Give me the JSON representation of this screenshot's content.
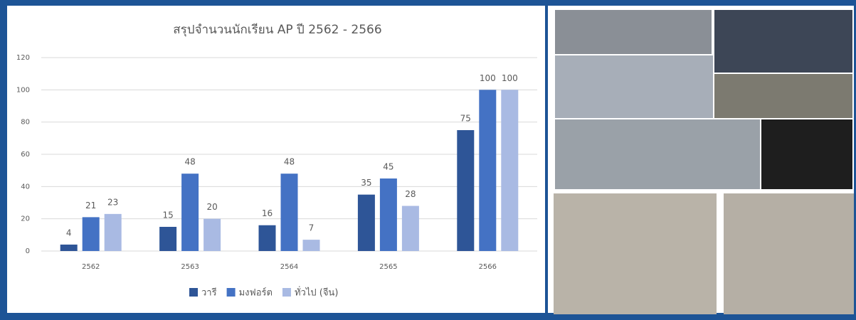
{
  "chart_data": {
    "type": "bar",
    "title": "สรุปจำนวนนักเรียน AP ปี 2562 - 2566",
    "categories": [
      "2562",
      "2563",
      "2564",
      "2565",
      "2566"
    ],
    "series": [
      {
        "name": "วารี",
        "color": "#2e5597",
        "values": [
          4,
          15,
          16,
          35,
          75
        ]
      },
      {
        "name": "มงฟอร์ต",
        "color": "#4472c4",
        "values": [
          21,
          48,
          48,
          45,
          100
        ]
      },
      {
        "name": "ทั่วไป (จีน)",
        "color": "#a9bae3",
        "values": [
          23,
          20,
          7,
          28,
          100
        ]
      }
    ],
    "ylim": [
      0,
      120
    ],
    "yticks": [
      0,
      20,
      40,
      60,
      80,
      100,
      120
    ],
    "grid": true,
    "legend": "bottom"
  }
}
